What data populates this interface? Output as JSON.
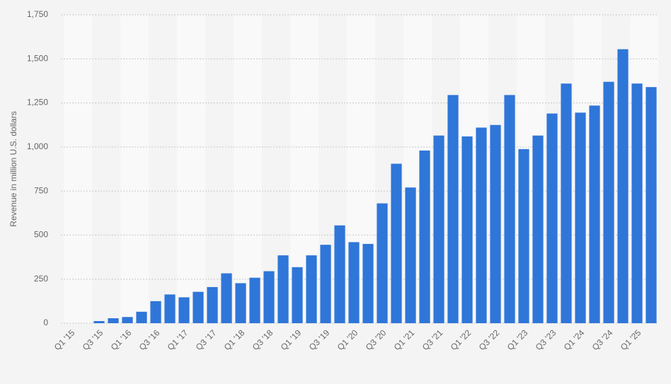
{
  "chart_data": {
    "type": "bar",
    "y_label": "Revenue in million U.S. dollars",
    "categories": [
      "Q1 '15",
      null,
      "Q3 '15",
      null,
      "Q1 '16",
      null,
      "Q3 '16",
      null,
      "Q1 '17",
      null,
      "Q3 '17",
      null,
      "Q1 '18",
      null,
      "Q3 '18",
      null,
      "Q1 '19",
      null,
      "Q3 '19",
      null,
      "Q1 '20",
      null,
      "Q3 '20",
      null,
      "Q1 '21",
      null,
      "Q3 '21",
      null,
      "Q1 '22",
      null,
      "Q3 '22",
      null,
      "Q1 '23",
      null,
      "Q3 '23",
      null,
      "Q1 '24",
      null,
      "Q3 '24",
      null,
      "Q1 '25",
      null
    ],
    "values": [
      0,
      0,
      12,
      28,
      35,
      65,
      125,
      163,
      147,
      178,
      205,
      283,
      227,
      258,
      295,
      385,
      318,
      385,
      445,
      555,
      460,
      450,
      680,
      905,
      770,
      980,
      1065,
      1295,
      1060,
      1110,
      1125,
      1295,
      988,
      1065,
      1190,
      1360,
      1195,
      1235,
      1370,
      1555,
      1360,
      1340
    ],
    "color": "#2f76d9",
    "ylim": [
      0,
      1750
    ],
    "yticks": [
      0,
      250,
      500,
      750,
      {
        "value": 1000,
        "label": "1,000"
      },
      {
        "value": 1250,
        "label": "1,250"
      },
      {
        "value": 1500,
        "label": "1,500"
      },
      {
        "value": 1750,
        "label": "1,750"
      }
    ],
    "grid": true
  }
}
